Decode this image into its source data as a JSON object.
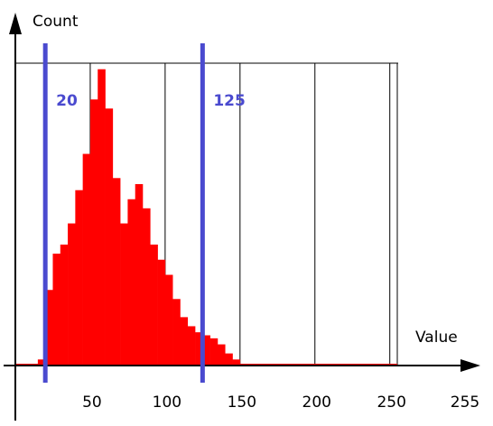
{
  "chart_data": {
    "type": "histogram",
    "ylabel": "Count",
    "xlabel": "Value",
    "bins": [
      0,
      5,
      10,
      15,
      20,
      25,
      30,
      35,
      40,
      45,
      50,
      55,
      60,
      65,
      70,
      75,
      80,
      85,
      90,
      95,
      100,
      105,
      110,
      115,
      120,
      125,
      130,
      135,
      140,
      145,
      150,
      155,
      160,
      165,
      170,
      175,
      180,
      185,
      190,
      195,
      200,
      205,
      210,
      215,
      220,
      225,
      230,
      235,
      240,
      245,
      250,
      255
    ],
    "values": [
      0,
      0,
      0,
      2,
      25,
      37,
      40,
      47,
      58,
      70,
      88,
      98,
      85,
      62,
      47,
      55,
      60,
      52,
      40,
      35,
      30,
      22,
      16,
      13,
      11,
      10,
      9,
      7,
      4,
      2,
      0.5,
      0,
      0,
      0,
      0,
      0,
      0,
      0,
      0,
      0,
      0,
      0,
      0,
      0,
      0,
      0,
      0,
      0,
      0,
      0,
      0
    ],
    "color": "#ff0000",
    "xlim": [
      0,
      255
    ],
    "ylim": [
      0,
      100
    ],
    "xticks": [
      50,
      100,
      150,
      200,
      250,
      255
    ],
    "grid": true,
    "thresholds": [
      20,
      125
    ],
    "threshold_color": "#4a4acf"
  }
}
